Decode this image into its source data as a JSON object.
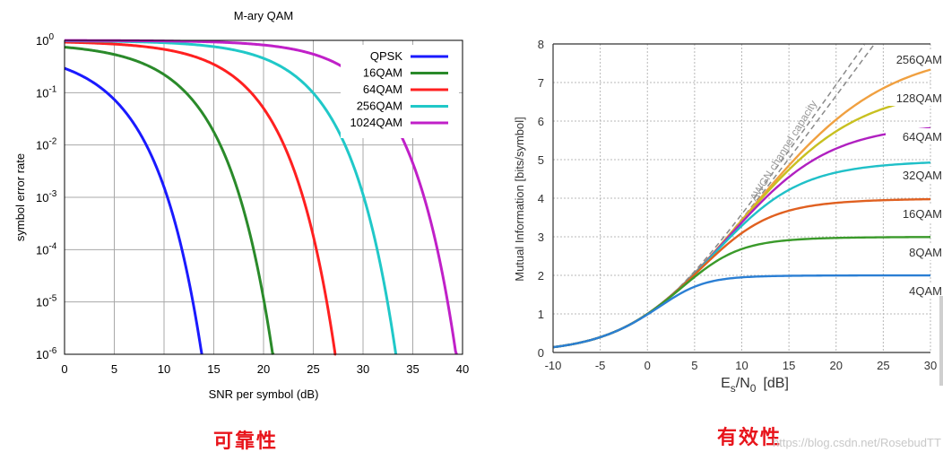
{
  "chart_data": [
    {
      "type": "line",
      "title": "M-ary QAM",
      "xlabel": "SNR per symbol (dB)",
      "ylabel": "symbol error rate",
      "xlim": [
        0,
        40
      ],
      "ylim": [
        1e-06,
        1
      ],
      "y_scale": "log",
      "x_ticks": [
        "0",
        "5",
        "10",
        "15",
        "20",
        "25",
        "30",
        "35",
        "40"
      ],
      "y_ticks": [
        {
          "base": "10",
          "exp": "0"
        },
        {
          "base": "10",
          "exp": "-1"
        },
        {
          "base": "10",
          "exp": "-2"
        },
        {
          "base": "10",
          "exp": "-3"
        },
        {
          "base": "10",
          "exp": "-4"
        },
        {
          "base": "10",
          "exp": "-5"
        },
        {
          "base": "10",
          "exp": "-6"
        }
      ],
      "grid": true,
      "legend_position": "top-right",
      "series": [
        {
          "name": "QPSK",
          "M": 4,
          "color": "#1a1aff"
        },
        {
          "name": "16QAM",
          "M": 16,
          "color": "#2a8a2a"
        },
        {
          "name": "64QAM",
          "M": 64,
          "color": "#ff2020"
        },
        {
          "name": "256QAM",
          "M": 256,
          "color": "#20c8c8"
        },
        {
          "name": "1024QAM",
          "M": 1024,
          "color": "#c020c8"
        }
      ]
    },
    {
      "type": "line",
      "xlabel": "Es/N0 [dB]",
      "xlabel_parts": {
        "a": "E",
        "a_sub": "s",
        "b": "/N",
        "b_sub": "0",
        "unit": "[dB]"
      },
      "ylabel": "Mutual Information [bits/symbol]",
      "xlim": [
        -10,
        30
      ],
      "ylim": [
        0,
        8
      ],
      "x_ticks": [
        "-10",
        "-5",
        "0",
        "5",
        "10",
        "15",
        "20",
        "25",
        "30"
      ],
      "y_ticks": [
        "0",
        "1",
        "2",
        "3",
        "4",
        "5",
        "6",
        "7",
        "8"
      ],
      "grid": true,
      "annotation": "AWGN channel capacity",
      "capacity_color": "#8a8a8a",
      "series": [
        {
          "name": "4QAM",
          "bits": 2,
          "color": "#2b7fd4"
        },
        {
          "name": "8QAM",
          "bits": 3,
          "color": "#3a9a2a"
        },
        {
          "name": "16QAM",
          "bits": 4,
          "color": "#e06020"
        },
        {
          "name": "32QAM",
          "bits": 5,
          "color": "#20c0c8"
        },
        {
          "name": "64QAM",
          "bits": 6,
          "color": "#b020c0"
        },
        {
          "name": "128QAM",
          "bits": 7,
          "color": "#c8c020"
        },
        {
          "name": "256QAM",
          "bits": 8,
          "color": "#f0a040"
        }
      ]
    }
  ],
  "captions": {
    "left": "可靠性",
    "right": "有效性",
    "caption_color": "#e8141b"
  },
  "watermark": "https://blog.csdn.net/RosebudTT"
}
